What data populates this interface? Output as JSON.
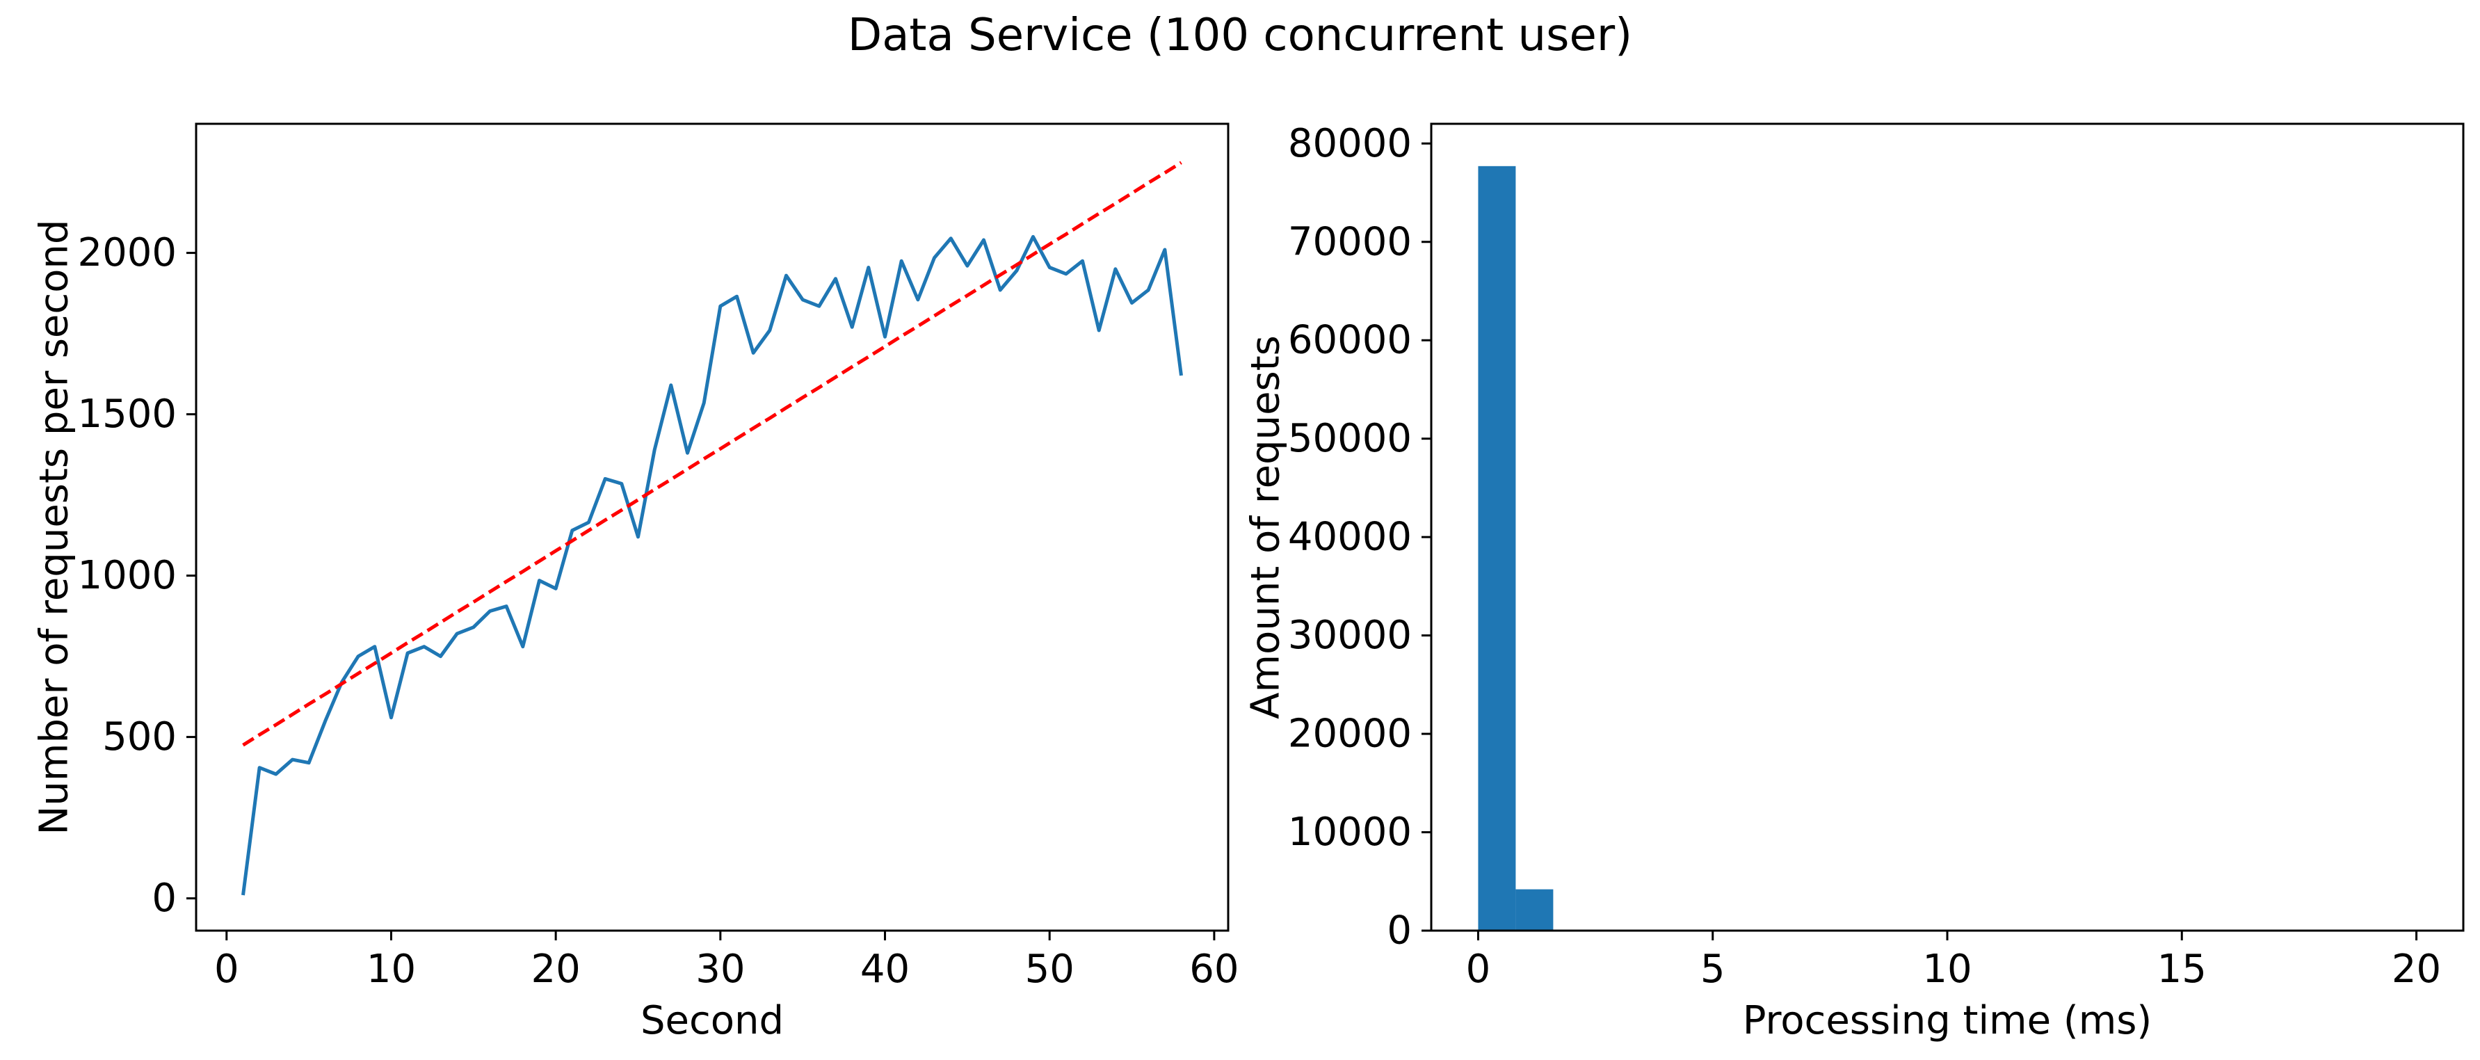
{
  "figure": {
    "title": "Data Service (100 concurrent user)"
  },
  "chart_data": [
    {
      "type": "line",
      "xlabel": "Second",
      "ylabel": "Number of requests per second",
      "xlim": [
        -1.85,
        60.85
      ],
      "ylim": [
        -100,
        2400
      ],
      "xticks": [
        0,
        10,
        20,
        30,
        40,
        50,
        60
      ],
      "yticks": [
        0,
        500,
        1000,
        1500,
        2000
      ],
      "grid": false,
      "x": [
        1,
        2,
        3,
        4,
        5,
        6,
        7,
        8,
        9,
        10,
        11,
        12,
        13,
        14,
        15,
        16,
        17,
        18,
        19,
        20,
        21,
        22,
        23,
        24,
        25,
        26,
        27,
        28,
        29,
        30,
        31,
        32,
        33,
        34,
        35,
        36,
        37,
        38,
        39,
        40,
        41,
        42,
        43,
        44,
        45,
        46,
        47,
        48,
        49,
        50,
        51,
        52,
        53,
        54,
        55,
        56,
        57,
        58
      ],
      "series": [
        {
          "color": "#1f77b4",
          "style": "solid",
          "values": [
            10,
            405,
            385,
            430,
            420,
            550,
            670,
            750,
            780,
            560,
            760,
            780,
            750,
            820,
            840,
            890,
            905,
            780,
            985,
            960,
            1140,
            1165,
            1300,
            1285,
            1120,
            1390,
            1590,
            1380,
            1535,
            1835,
            1865,
            1690,
            1760,
            1930,
            1855,
            1835,
            1920,
            1770,
            1955,
            1740,
            1975,
            1855,
            1985,
            2045,
            1960,
            2040,
            1885,
            1945,
            2050,
            1955,
            1935,
            1975,
            1760,
            1950,
            1845,
            1885,
            2010,
            1620
          ]
        },
        {
          "color": "#ff0000",
          "style": "dashed",
          "values": [
            475,
            507,
            538,
            570,
            602,
            633,
            665,
            697,
            728,
            760,
            792,
            823,
            855,
            887,
            918,
            950,
            982,
            1013,
            1045,
            1077,
            1108,
            1140,
            1172,
            1203,
            1235,
            1267,
            1298,
            1330,
            1362,
            1393,
            1425,
            1457,
            1488,
            1520,
            1552,
            1583,
            1615,
            1647,
            1678,
            1710,
            1742,
            1773,
            1805,
            1837,
            1868,
            1900,
            1932,
            1963,
            1995,
            2027,
            2058,
            2090,
            2122,
            2153,
            2185,
            2217,
            2248,
            2280
          ]
        }
      ]
    },
    {
      "type": "bar",
      "subtype": "histogram",
      "xlabel": "Processing time (ms)",
      "ylabel": "Amount of requests",
      "xlim": [
        -1.0,
        21.0
      ],
      "ylim": [
        0,
        82000
      ],
      "xticks": [
        0,
        5,
        10,
        15,
        20
      ],
      "yticks": [
        0,
        10000,
        20000,
        30000,
        40000,
        50000,
        60000,
        70000,
        80000
      ],
      "grid": false,
      "bin_width": 0.8,
      "bin_start": 0,
      "color": "#1f77b4",
      "values": [
        77700,
        4200,
        0,
        0,
        0,
        0,
        0,
        0,
        0,
        0,
        0,
        0,
        0,
        0,
        0,
        0,
        0,
        0,
        0,
        0,
        0,
        0,
        0,
        0,
        0
      ]
    }
  ]
}
